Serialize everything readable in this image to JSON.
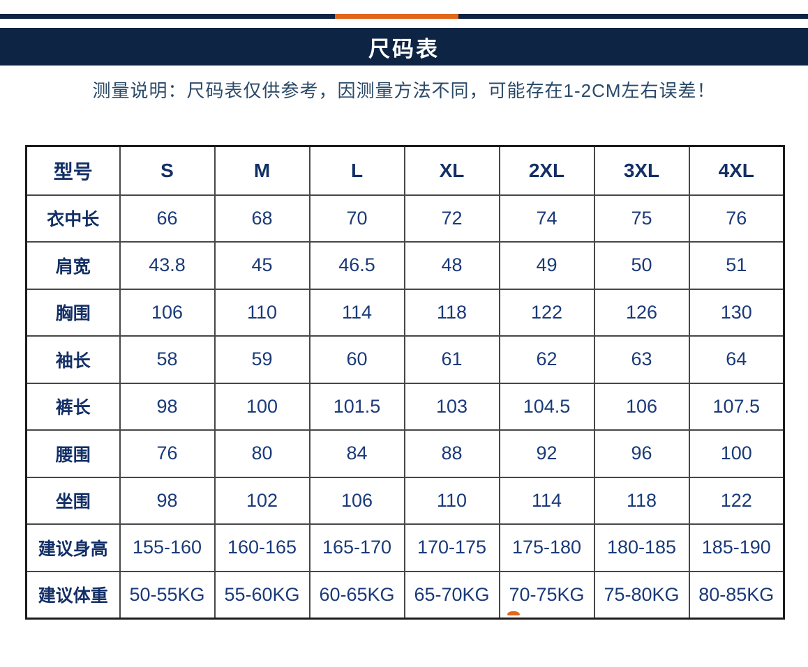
{
  "colors": {
    "navy_bar": "#0e2444",
    "orange_accent": "#e0671c",
    "label_text": "#132f66",
    "value_text": "#1a3a79",
    "note_text": "#2b4a68",
    "table_border_outer": "#1c1c1c",
    "table_border_grid": "#474747"
  },
  "header": {
    "title": "尺码表"
  },
  "note": {
    "text": "测量说明：尺码表仅供参考，因测量方法不同，可能存在1-2CM左右误差！"
  },
  "size_table": {
    "columns": [
      "型号",
      "S",
      "M",
      "L",
      "XL",
      "2XL",
      "3XL",
      "4XL"
    ],
    "rows": [
      {
        "label": "衣中长",
        "values": [
          "66",
          "68",
          "70",
          "72",
          "74",
          "75",
          "76"
        ]
      },
      {
        "label": "肩宽",
        "values": [
          "43.8",
          "45",
          "46.5",
          "48",
          "49",
          "50",
          "51"
        ]
      },
      {
        "label": "胸围",
        "values": [
          "106",
          "110",
          "114",
          "118",
          "122",
          "126",
          "130"
        ]
      },
      {
        "label": "袖长",
        "values": [
          "58",
          "59",
          "60",
          "61",
          "62",
          "63",
          "64"
        ]
      },
      {
        "label": "裤长",
        "values": [
          "98",
          "100",
          "101.5",
          "103",
          "104.5",
          "106",
          "107.5"
        ]
      },
      {
        "label": "腰围",
        "values": [
          "76",
          "80",
          "84",
          "88",
          "92",
          "96",
          "100"
        ]
      },
      {
        "label": "坐围",
        "values": [
          "98",
          "102",
          "106",
          "110",
          "114",
          "118",
          "122"
        ]
      },
      {
        "label": "建议身高",
        "values": [
          "155-160",
          "160-165",
          "165-170",
          "170-175",
          "175-180",
          "180-185",
          "185-190"
        ]
      },
      {
        "label": "建议体重",
        "values": [
          "50-55KG",
          "55-60KG",
          "60-65KG",
          "65-70KG",
          "70-75KG",
          "75-80KG",
          "80-85KG"
        ]
      }
    ]
  }
}
